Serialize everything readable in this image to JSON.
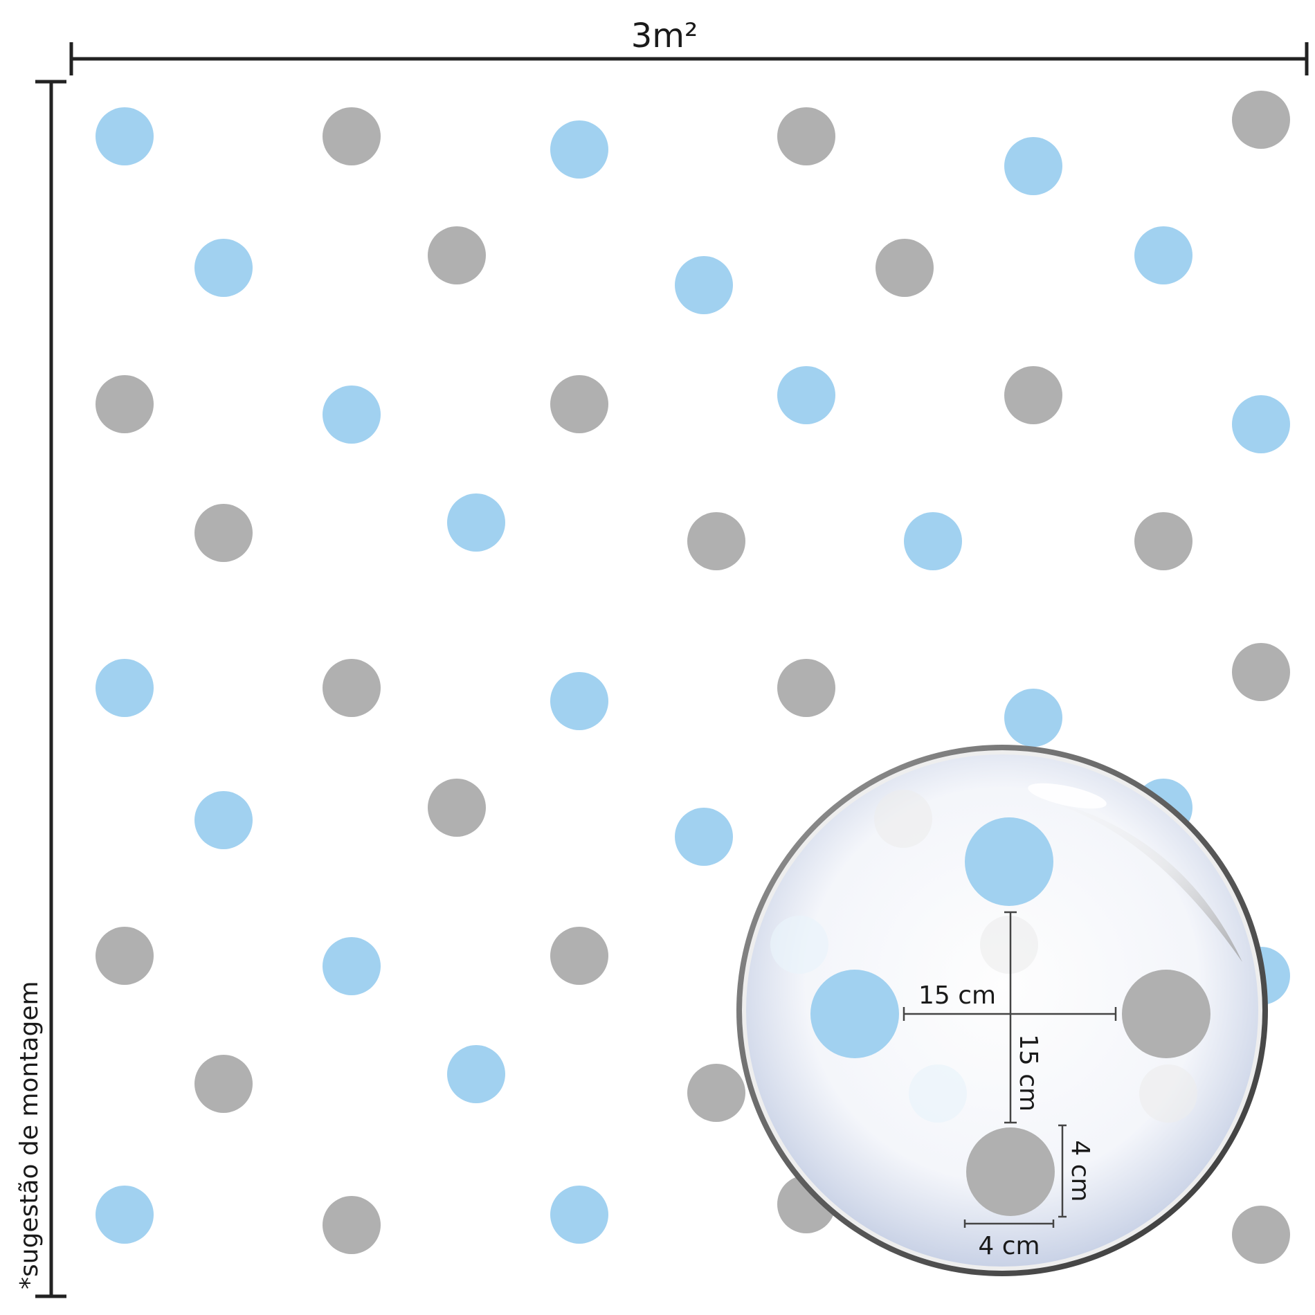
{
  "width_label": "3m²",
  "note_label": "*sugestão de montagem",
  "magnifier": {
    "spacing_horizontal_label": "15 cm",
    "spacing_vertical_label": "15 cm",
    "dot_height_label": "4 cm",
    "dot_width_label": "4 cm"
  },
  "colors": {
    "blue_dot": "#a1d1f0",
    "gray_dot": "#b0b0b0",
    "line": "#222222"
  },
  "dots": [
    {
      "color": "blue"
    },
    {
      "color": "gray"
    },
    {
      "color": "blue"
    },
    {
      "color": "gray"
    },
    {
      "color": "blue"
    },
    {
      "color": "gray"
    },
    {
      "color": "blue"
    },
    {
      "color": "gray"
    },
    {
      "color": "blue"
    },
    {
      "color": "gray"
    },
    {
      "color": "blue"
    },
    {
      "color": "gray"
    },
    {
      "color": "blue"
    },
    {
      "color": "gray"
    },
    {
      "color": "blue"
    },
    {
      "color": "gray"
    },
    {
      "color": "blue"
    },
    {
      "color": "gray"
    },
    {
      "color": "blue"
    },
    {
      "color": "gray"
    },
    {
      "color": "blue"
    },
    {
      "color": "gray"
    },
    {
      "color": "blue"
    },
    {
      "color": "gray"
    },
    {
      "color": "blue"
    },
    {
      "color": "gray"
    },
    {
      "color": "blue"
    },
    {
      "color": "gray"
    },
    {
      "color": "blue"
    },
    {
      "color": "gray"
    },
    {
      "color": "blue"
    },
    {
      "color": "blue"
    },
    {
      "color": "gray"
    },
    {
      "color": "blue"
    },
    {
      "color": "gray"
    },
    {
      "color": "blue"
    },
    {
      "color": "gray"
    },
    {
      "color": "blue"
    },
    {
      "color": "gray"
    },
    {
      "color": "blue"
    },
    {
      "color": "gray"
    },
    {
      "color": "blue"
    },
    {
      "color": "gray"
    },
    {
      "color": "gray"
    }
  ]
}
